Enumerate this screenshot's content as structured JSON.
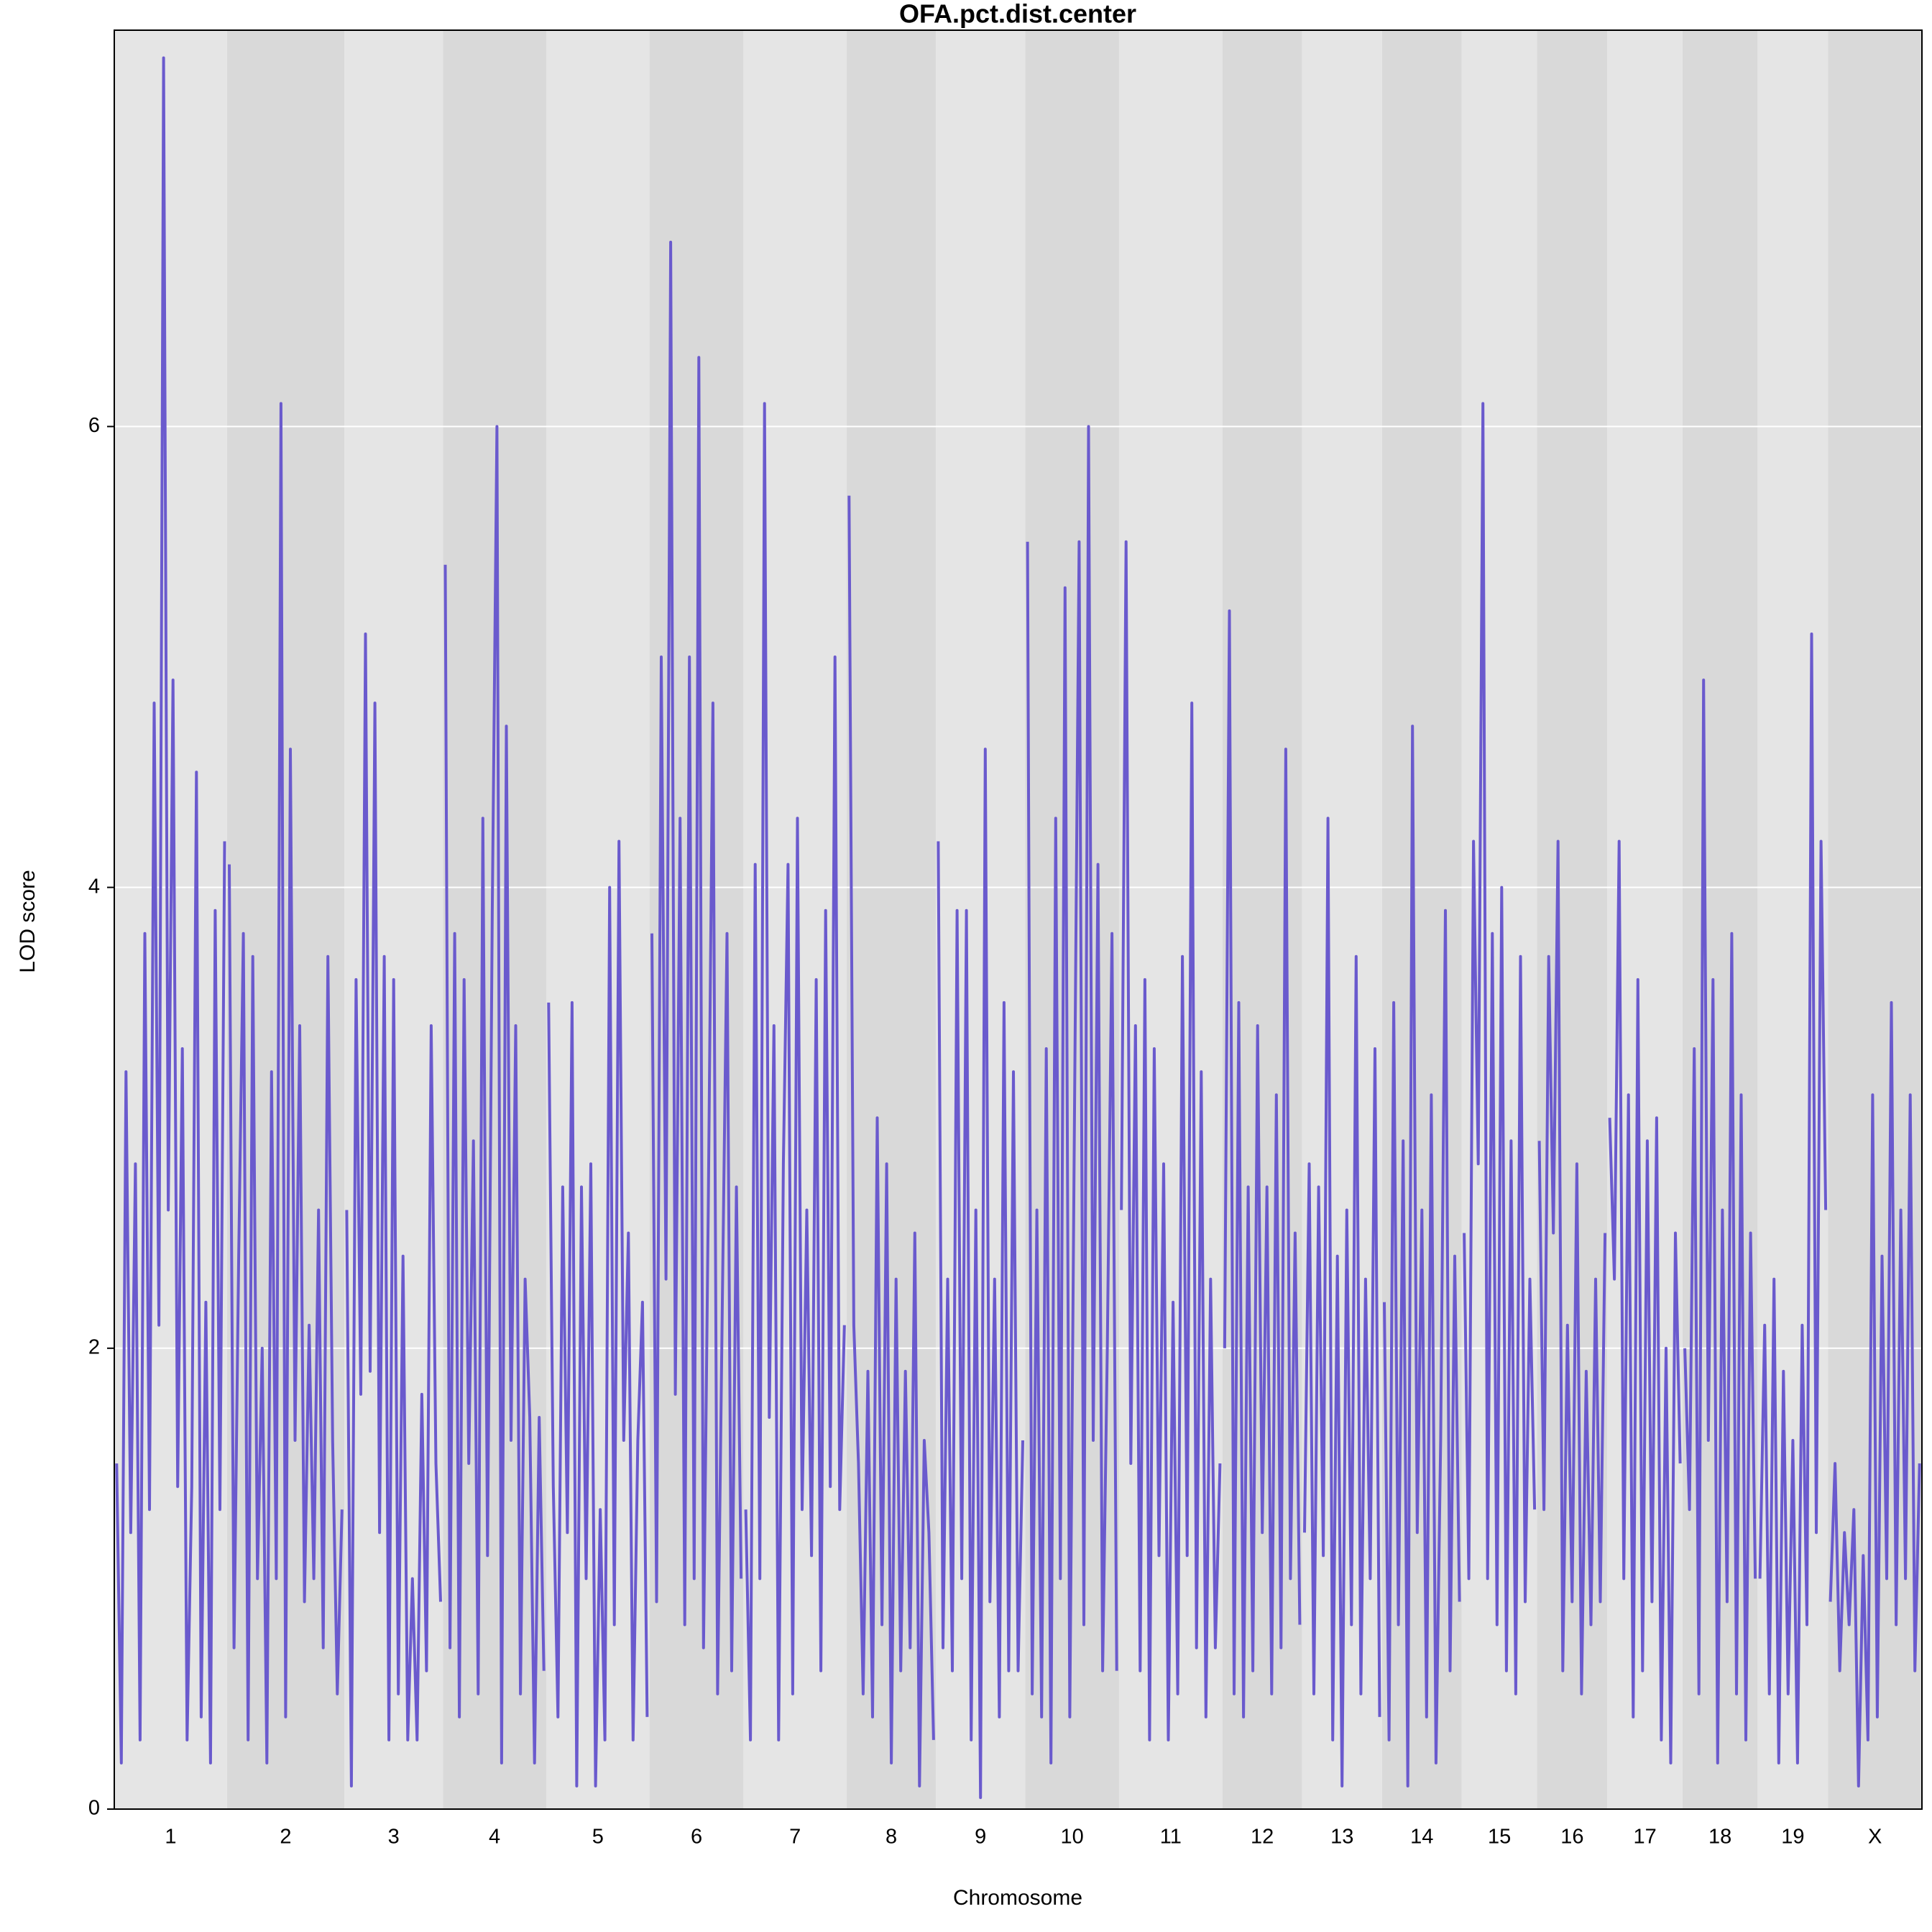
{
  "chart_data": {
    "type": "lod-scan",
    "title": "OFA.pct.dist.center",
    "xlabel": "Chromosome",
    "ylabel": "LOD score",
    "color": "#6a5acd",
    "ylim": [
      0,
      7.72
    ],
    "yticks": [
      0,
      2,
      4,
      6
    ],
    "grid": true,
    "chromosomes": [
      {
        "name": "1",
        "values": [
          1.5,
          0.2,
          3.2,
          1.2,
          2.8,
          0.3,
          3.8,
          1.3,
          4.8,
          2.1,
          7.6,
          2.6,
          4.9,
          1.4,
          3.3,
          0.3,
          1.4,
          4.5,
          0.4,
          2.2,
          0.2,
          3.9,
          1.3,
          4.2
        ]
      },
      {
        "name": "2",
        "values": [
          4.1,
          0.7,
          2.4,
          3.8,
          0.3,
          3.7,
          1.0,
          2.0,
          0.2,
          3.2,
          1.0,
          6.1,
          0.4,
          4.6,
          1.6,
          3.4,
          0.9,
          2.1,
          1.0,
          2.6,
          0.7,
          3.7,
          1.6,
          0.5,
          1.3
        ]
      },
      {
        "name": "3",
        "values": [
          2.6,
          0.1,
          3.6,
          1.8,
          5.1,
          1.9,
          4.8,
          1.2,
          3.7,
          0.3,
          3.6,
          0.5,
          2.4,
          0.3,
          1.0,
          0.3,
          1.8,
          0.6,
          3.4,
          1.5,
          0.9
        ]
      },
      {
        "name": "4",
        "values": [
          5.4,
          0.7,
          3.8,
          0.4,
          3.6,
          1.5,
          2.9,
          0.5,
          4.3,
          1.1,
          3.9,
          6.0,
          0.2,
          4.7,
          1.6,
          3.4,
          0.5,
          2.3,
          1.7,
          0.2,
          1.7,
          0.6
        ]
      },
      {
        "name": "5",
        "values": [
          3.5,
          1.4,
          0.4,
          2.7,
          1.2,
          3.5,
          0.1,
          2.7,
          1.0,
          2.8,
          0.1,
          1.3,
          0.3,
          4.0,
          0.8,
          4.2,
          1.6,
          2.5,
          0.3,
          1.6,
          2.2,
          0.4
        ]
      },
      {
        "name": "6",
        "values": [
          3.8,
          0.9,
          5.0,
          2.3,
          6.8,
          1.8,
          4.3,
          0.8,
          5.0,
          1.0,
          6.3,
          0.7,
          2.6,
          4.8,
          0.5,
          2.2,
          3.8,
          0.6,
          2.7,
          1.0
        ]
      },
      {
        "name": "7",
        "values": [
          1.3,
          0.3,
          4.1,
          1.0,
          6.1,
          1.7,
          3.4,
          0.3,
          2.8,
          4.1,
          0.5,
          4.3,
          1.3,
          2.6,
          1.1,
          3.6,
          0.6,
          3.9,
          1.4,
          5.0,
          1.3,
          2.1
        ]
      },
      {
        "name": "8",
        "values": [
          5.7,
          2.1,
          1.5,
          0.5,
          1.9,
          0.4,
          3.0,
          0.8,
          2.8,
          0.2,
          2.3,
          0.6,
          1.9,
          0.7,
          2.5,
          0.1,
          1.6,
          1.2,
          0.3
        ]
      },
      {
        "name": "9",
        "values": [
          4.2,
          0.7,
          2.3,
          0.6,
          3.9,
          1.0,
          3.9,
          0.3,
          2.6,
          0.05,
          4.6,
          0.9,
          2.3,
          0.4,
          3.5,
          0.6,
          3.2,
          0.6,
          1.6
        ]
      },
      {
        "name": "10",
        "values": [
          5.5,
          0.5,
          2.6,
          0.4,
          3.3,
          0.2,
          4.3,
          1.0,
          5.3,
          0.4,
          3.0,
          5.5,
          0.8,
          6.0,
          1.6,
          4.1,
          0.6,
          2.0,
          3.8,
          0.6
        ]
      },
      {
        "name": "11",
        "values": [
          2.6,
          5.5,
          1.5,
          3.4,
          0.6,
          3.6,
          0.3,
          3.3,
          1.1,
          2.8,
          0.3,
          2.2,
          0.5,
          3.7,
          1.1,
          4.8,
          0.7,
          3.2,
          0.4,
          2.3,
          0.7,
          1.5
        ]
      },
      {
        "name": "12",
        "values": [
          2.0,
          5.2,
          0.5,
          3.5,
          0.4,
          2.7,
          0.6,
          3.4,
          1.2,
          2.7,
          0.5,
          3.1,
          0.7,
          4.6,
          1.0,
          2.5,
          0.8
        ]
      },
      {
        "name": "13",
        "values": [
          1.2,
          2.8,
          0.5,
          2.7,
          1.1,
          4.3,
          0.3,
          2.4,
          0.1,
          2.6,
          0.8,
          3.7,
          0.5,
          2.3,
          1.0,
          3.3,
          0.4
        ]
      },
      {
        "name": "14",
        "values": [
          2.2,
          0.3,
          3.5,
          0.8,
          2.9,
          0.1,
          4.7,
          1.2,
          2.6,
          0.4,
          3.1,
          0.2,
          1.6,
          3.9,
          0.6,
          2.4,
          0.9
        ]
      },
      {
        "name": "15",
        "values": [
          2.5,
          1.0,
          4.2,
          2.8,
          6.1,
          1.0,
          3.8,
          0.8,
          4.0,
          0.6,
          2.9,
          0.5,
          3.7,
          0.9,
          2.3,
          1.3
        ]
      },
      {
        "name": "16",
        "values": [
          2.9,
          1.3,
          3.7,
          2.5,
          4.2,
          0.6,
          2.1,
          0.9,
          2.8,
          0.5,
          1.9,
          0.8,
          2.3,
          0.9,
          2.5
        ]
      },
      {
        "name": "17",
        "values": [
          3.0,
          2.3,
          4.2,
          1.0,
          3.1,
          0.4,
          3.6,
          0.6,
          2.9,
          0.9,
          3.0,
          0.3,
          2.0,
          0.2,
          2.5,
          1.5
        ]
      },
      {
        "name": "18",
        "values": [
          2.0,
          1.3,
          3.3,
          0.5,
          4.9,
          1.6,
          3.6,
          0.2,
          2.6,
          0.9,
          3.8,
          0.5,
          3.1,
          0.3,
          2.5,
          1.0
        ]
      },
      {
        "name": "19",
        "values": [
          1.0,
          2.1,
          0.5,
          2.3,
          0.2,
          1.9,
          0.5,
          1.6,
          0.2,
          2.1,
          0.8,
          5.1,
          1.2,
          4.2,
          2.6
        ]
      },
      {
        "name": "X",
        "values": [
          0.9,
          1.5,
          0.6,
          1.2,
          0.8,
          1.3,
          0.1,
          1.1,
          0.3,
          3.1,
          0.4,
          2.4,
          1.0,
          3.5,
          0.8,
          2.6,
          1.0,
          3.1,
          0.6,
          1.5
        ]
      }
    ]
  }
}
